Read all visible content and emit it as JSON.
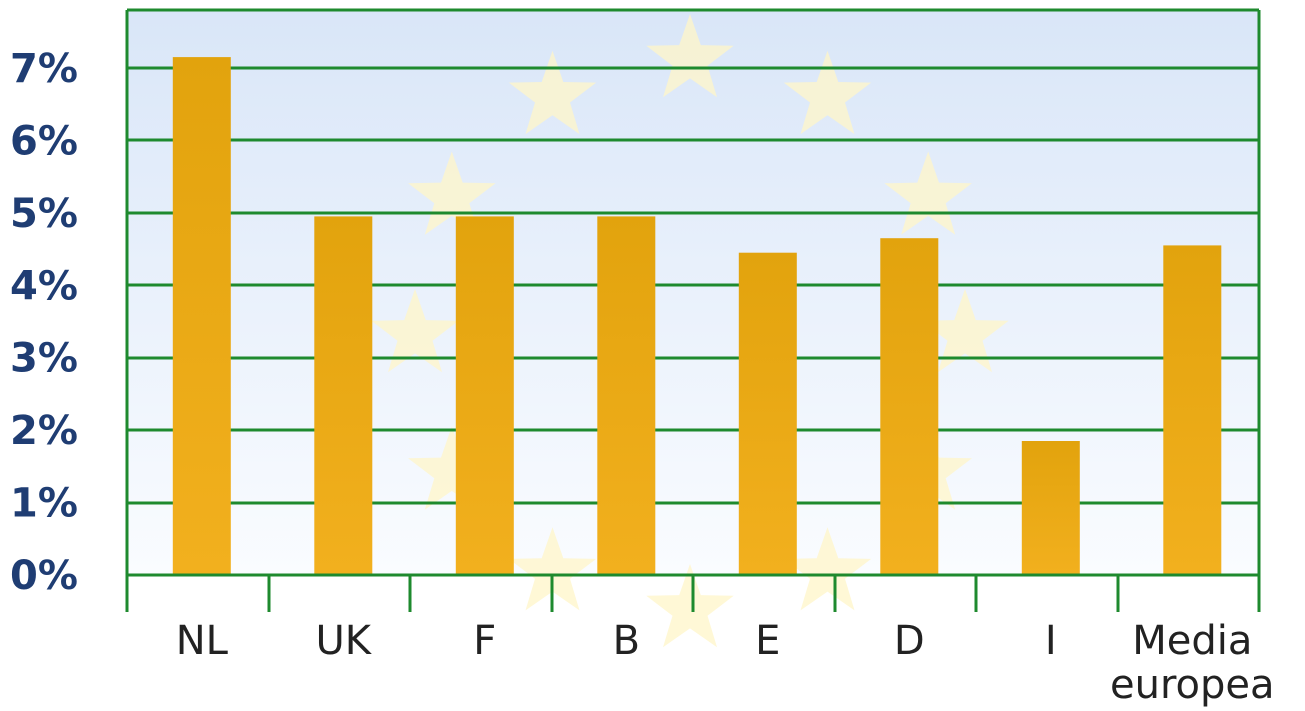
{
  "chart_data": {
    "type": "bar",
    "categories": [
      "NL",
      "UK",
      "F",
      "B",
      "E",
      "D",
      "I",
      "Media europea"
    ],
    "category_lines": [
      [
        "NL"
      ],
      [
        "UK"
      ],
      [
        "F"
      ],
      [
        "B"
      ],
      [
        "E"
      ],
      [
        "D"
      ],
      [
        "I"
      ],
      [
        "Media",
        "europea"
      ]
    ],
    "values": [
      7.15,
      4.95,
      4.95,
      4.95,
      4.45,
      4.65,
      1.85,
      4.55
    ],
    "ylim": [
      0,
      7.8
    ],
    "yticks": [
      0,
      1,
      2,
      3,
      4,
      5,
      6,
      7
    ],
    "ytick_labels": [
      "0%",
      "1%",
      "2%",
      "3%",
      "4%",
      "5%",
      "6%",
      "7%"
    ],
    "grid": true,
    "title": "",
    "xlabel": "",
    "ylabel": "",
    "colors": {
      "bar": "#e8a417",
      "grid": "#1e8a2e",
      "axis_text": "#1f3d73",
      "category_text": "#222222",
      "background_top": "#d9e6f8",
      "background_bottom": "#fafcff",
      "star": "#fff6c8"
    }
  }
}
